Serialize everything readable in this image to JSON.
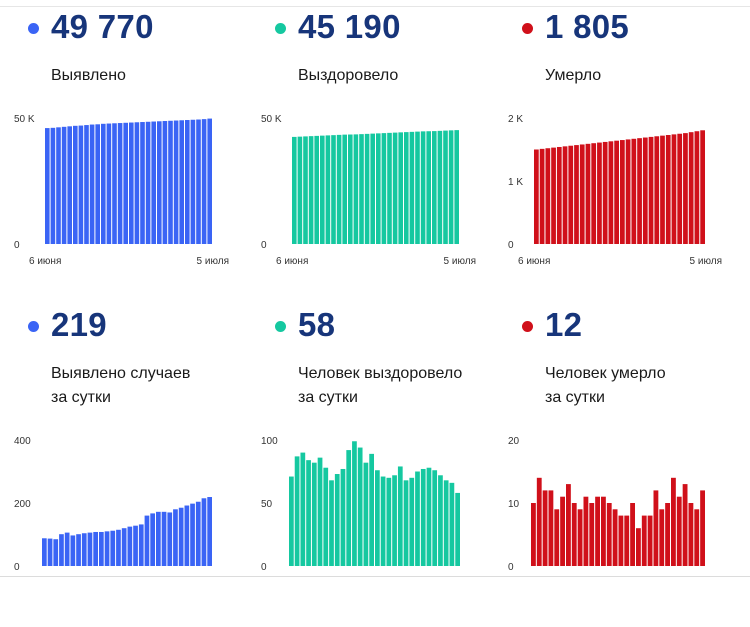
{
  "panels": [
    {
      "id": "detected-total",
      "value": "49 770",
      "label_line1": "Выявлено",
      "label_line2": "",
      "color": "#3a64f5",
      "chart_data": {
        "type": "bar",
        "y_ticks": [
          "0",
          "50 K"
        ],
        "y_tick_values": [
          0,
          50000
        ],
        "ylim": [
          0,
          50000
        ],
        "x_labels": [
          "6 июня",
          "5 июля"
        ],
        "grid": false,
        "values": [
          46000,
          46100,
          46300,
          46500,
          46700,
          46900,
          47000,
          47200,
          47400,
          47500,
          47700,
          47800,
          47900,
          48000,
          48100,
          48200,
          48300,
          48400,
          48500,
          48600,
          48700,
          48800,
          48900,
          49000,
          49100,
          49200,
          49300,
          49400,
          49550,
          49770
        ]
      }
    },
    {
      "id": "recovered-total",
      "value": "45 190",
      "label_line1": "Выздоровело",
      "label_line2": "",
      "color": "#15c8a0",
      "chart_data": {
        "type": "bar",
        "y_ticks": [
          "0",
          "50 K"
        ],
        "y_tick_values": [
          0,
          50000
        ],
        "ylim": [
          0,
          50000
        ],
        "x_labels": [
          "6 июня",
          "5 июля"
        ],
        "grid": false,
        "values": [
          42500,
          42600,
          42700,
          42800,
          42900,
          43000,
          43100,
          43200,
          43300,
          43400,
          43450,
          43500,
          43600,
          43700,
          43800,
          43900,
          44000,
          44100,
          44200,
          44300,
          44400,
          44500,
          44600,
          44700,
          44750,
          44800,
          44900,
          45000,
          45100,
          45190
        ]
      }
    },
    {
      "id": "died-total",
      "value": "1 805",
      "label_line1": "Умерло",
      "label_line2": "",
      "color": "#d0101a",
      "chart_data": {
        "type": "bar",
        "y_ticks": [
          "0",
          "1 K",
          "2 K"
        ],
        "y_tick_values": [
          0,
          1000,
          2000
        ],
        "ylim": [
          0,
          2000
        ],
        "x_labels": [
          "6 июня",
          "5 июля"
        ],
        "grid": false,
        "values": [
          1500,
          1510,
          1520,
          1530,
          1540,
          1550,
          1560,
          1570,
          1580,
          1590,
          1600,
          1610,
          1620,
          1630,
          1640,
          1650,
          1660,
          1670,
          1680,
          1690,
          1700,
          1710,
          1720,
          1730,
          1740,
          1750,
          1760,
          1775,
          1790,
          1805
        ]
      }
    },
    {
      "id": "detected-daily",
      "value": "219",
      "label_line1": "Выявлено случаев",
      "label_line2": "за сутки",
      "color": "#3a64f5",
      "chart_data": {
        "type": "bar",
        "y_ticks": [
          "0",
          "200",
          "400"
        ],
        "y_tick_values": [
          0,
          200,
          400
        ],
        "ylim": [
          0,
          400
        ],
        "x_labels": [],
        "grid": false,
        "values": [
          88,
          87,
          85,
          101,
          106,
          97,
          101,
          104,
          106,
          108,
          108,
          110,
          112,
          115,
          120,
          125,
          128,
          132,
          160,
          167,
          172,
          172,
          170,
          180,
          185,
          192,
          198,
          204,
          215,
          219
        ]
      }
    },
    {
      "id": "recovered-daily",
      "value": "58",
      "label_line1": "Человек выздоровело",
      "label_line2": "за сутки",
      "color": "#15c8a0",
      "chart_data": {
        "type": "bar",
        "y_ticks": [
          "0",
          "50",
          "100"
        ],
        "y_tick_values": [
          0,
          50,
          100
        ],
        "ylim": [
          0,
          100
        ],
        "x_labels": [],
        "grid": false,
        "values": [
          71,
          87,
          90,
          84,
          82,
          86,
          78,
          68,
          73,
          77,
          92,
          99,
          94,
          82,
          89,
          76,
          71,
          70,
          72,
          79,
          68,
          70,
          75,
          77,
          78,
          76,
          72,
          68,
          66,
          58
        ]
      }
    },
    {
      "id": "died-daily",
      "value": "12",
      "label_line1": "Человек умерло",
      "label_line2": "за сутки",
      "color": "#d0101a",
      "chart_data": {
        "type": "bar",
        "y_ticks": [
          "0",
          "10",
          "20"
        ],
        "y_tick_values": [
          0,
          10,
          20
        ],
        "ylim": [
          0,
          20
        ],
        "x_labels": [],
        "grid": false,
        "values": [
          10,
          14,
          12,
          12,
          9,
          11,
          13,
          10,
          9,
          11,
          10,
          11,
          11,
          10,
          9,
          8,
          8,
          10,
          6,
          8,
          8,
          12,
          9,
          10,
          14,
          11,
          13,
          10,
          9,
          12
        ]
      }
    }
  ]
}
